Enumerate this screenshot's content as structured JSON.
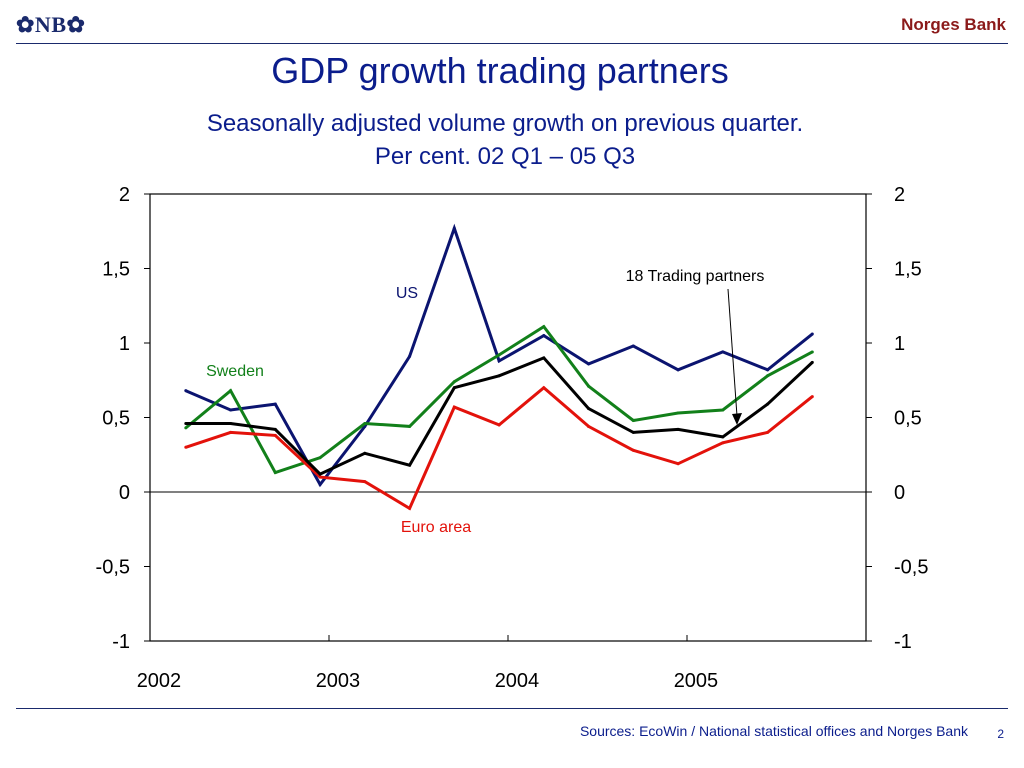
{
  "header": {
    "logo_text": "✿NB✿",
    "bank_name": "Norges Bank"
  },
  "slide": {
    "title": "GDP growth trading partners",
    "subtitle_line1": "Seasonally adjusted volume growth on previous quarter.",
    "subtitle_line2": "Per cent. 02 Q1 – 05 Q3"
  },
  "footer": {
    "source": "Sources: EcoWin / National statistical offices and Norges Bank",
    "page_number": "2"
  },
  "colors": {
    "text_blue": "#0b1d8c",
    "bank_red": "#8b1a1a"
  },
  "chart_data": {
    "type": "line",
    "title": "",
    "xlabel": "",
    "ylabel": "",
    "ylim": [
      -1,
      2
    ],
    "y_ticks": [
      -1,
      -0.5,
      0,
      0.5,
      1,
      1.5,
      2
    ],
    "y_tick_labels": [
      "-1",
      "-0,5",
      "0",
      "0,5",
      "1",
      "1,5",
      "2"
    ],
    "x_range": [
      2002.0,
      2006.0
    ],
    "x_ticks": [
      2003,
      2004,
      2005
    ],
    "year_labels": [
      "2002",
      "2003",
      "2004",
      "2005"
    ],
    "categories": [
      "02 Q1",
      "02 Q2",
      "02 Q3",
      "02 Q4",
      "03 Q1",
      "03 Q2",
      "03 Q3",
      "03 Q4",
      "04 Q1",
      "04 Q2",
      "04 Q3",
      "04 Q4",
      "05 Q1",
      "05 Q2",
      "05 Q3"
    ],
    "x": [
      2002.2,
      2002.45,
      2002.7,
      2002.95,
      2003.2,
      2003.45,
      2003.7,
      2003.95,
      2004.2,
      2004.45,
      2004.7,
      2004.95,
      2005.2,
      2005.45,
      2005.7
    ],
    "grid": false,
    "legend": "inline labels",
    "series": [
      {
        "name": "US",
        "color": "#0b1470",
        "values": [
          0.68,
          0.55,
          0.59,
          0.05,
          0.44,
          0.91,
          1.77,
          0.88,
          1.05,
          0.86,
          0.98,
          0.82,
          0.94,
          0.82,
          1.06
        ]
      },
      {
        "name": "Sweden",
        "color": "#12801a",
        "values": [
          0.43,
          0.68,
          0.13,
          0.23,
          0.46,
          0.44,
          0.74,
          0.92,
          1.11,
          0.71,
          0.48,
          0.53,
          0.55,
          0.78,
          0.94
        ]
      },
      {
        "name": "Euro area",
        "color": "#e3120b",
        "values": [
          0.3,
          0.4,
          0.38,
          0.1,
          0.07,
          -0.11,
          0.57,
          0.45,
          0.7,
          0.44,
          0.28,
          0.19,
          0.33,
          0.4,
          0.64
        ]
      },
      {
        "name": "18 Trading partners",
        "color": "#000000",
        "values": [
          0.46,
          0.46,
          0.42,
          0.12,
          0.26,
          0.18,
          0.7,
          0.78,
          0.9,
          0.56,
          0.4,
          0.42,
          0.37,
          0.59,
          0.87
        ]
      }
    ],
    "annotations": [
      "US",
      "Sweden",
      "Euro area",
      "18 Trading partners"
    ]
  }
}
